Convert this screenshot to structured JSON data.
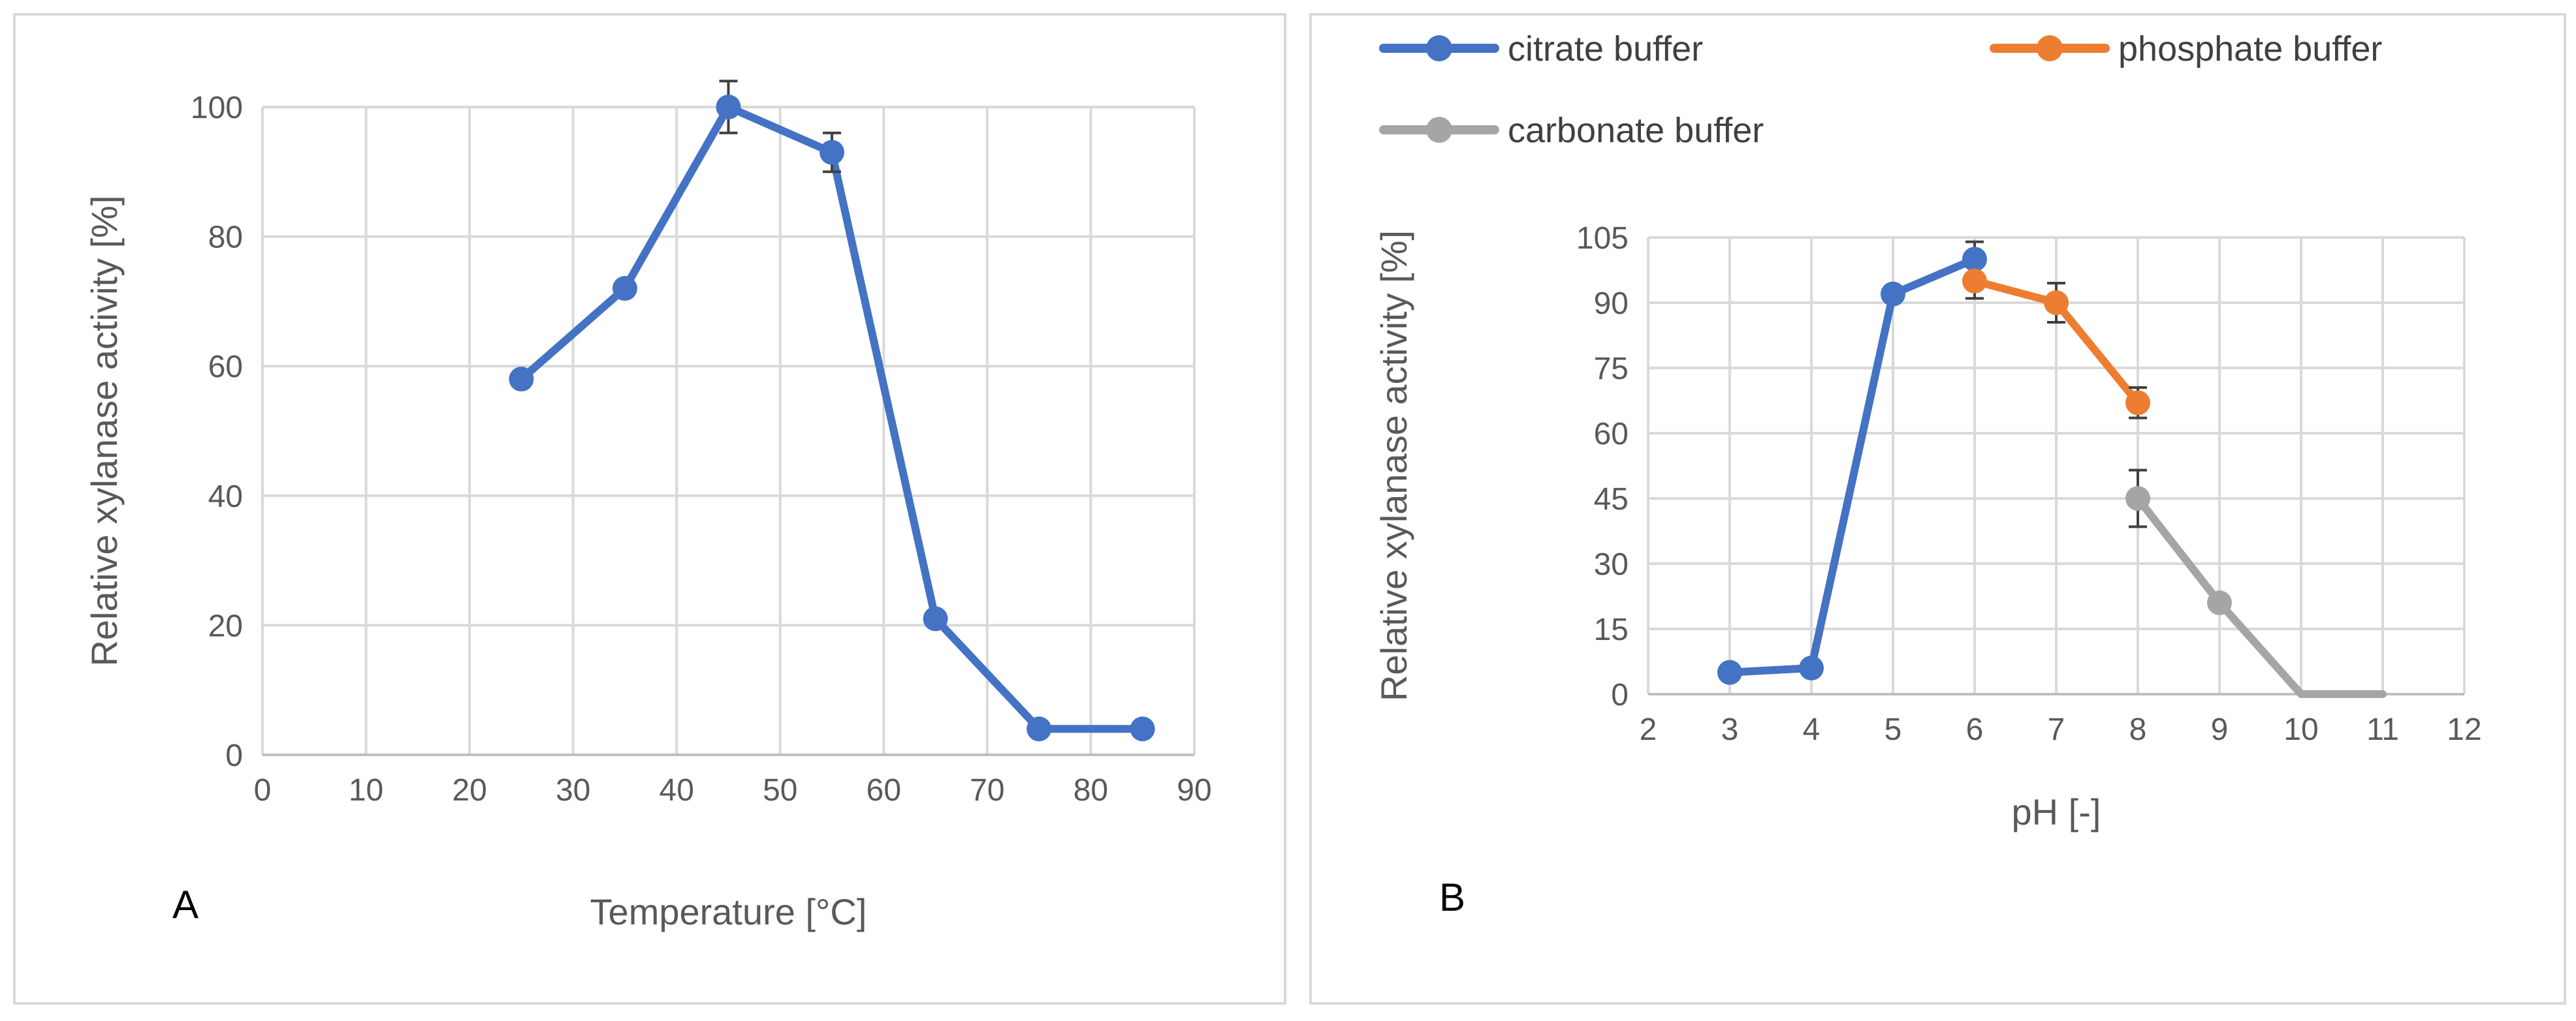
{
  "chart_data": [
    {
      "type": "line",
      "panel_label": "A",
      "title": "",
      "xlabel": "Temperature [°C]",
      "ylabel": "Relative xylanase activity [%]",
      "xlim": [
        0,
        90
      ],
      "ylim": [
        0,
        100
      ],
      "xticks": [
        0,
        10,
        20,
        30,
        40,
        50,
        60,
        70,
        80,
        90
      ],
      "yticks": [
        0,
        20,
        40,
        60,
        80,
        100
      ],
      "grid": true,
      "series": [
        {
          "name": "",
          "color": "#4472c4",
          "x": [
            25,
            35,
            45,
            55,
            65,
            75,
            85
          ],
          "values": [
            58,
            72,
            100,
            93,
            21,
            4,
            4
          ],
          "errors": [
            0,
            0,
            4,
            3,
            0,
            0,
            0
          ]
        }
      ]
    },
    {
      "type": "line",
      "panel_label": "B",
      "title": "",
      "xlabel": "pH [-]",
      "ylabel": "Relative xylanase activity [%]",
      "xlim": [
        2,
        12
      ],
      "ylim": [
        0,
        105
      ],
      "xticks": [
        2,
        3,
        4,
        5,
        6,
        7,
        8,
        9,
        10,
        11,
        12
      ],
      "yticks": [
        0,
        15,
        30,
        45,
        60,
        75,
        90,
        105
      ],
      "grid": true,
      "legend_position": "top",
      "series": [
        {
          "name": "citrate buffer",
          "color": "#4472c4",
          "x": [
            3,
            4,
            5,
            6
          ],
          "values": [
            5,
            6,
            92,
            100
          ],
          "errors": [
            0,
            0,
            0,
            4
          ]
        },
        {
          "name": "phosphate buffer",
          "color": "#ed7d31",
          "x": [
            6,
            7,
            8
          ],
          "values": [
            95,
            90,
            67
          ],
          "errors": [
            4,
            4.5,
            3.5
          ]
        },
        {
          "name": "carbonate buffer",
          "color": "#a5a5a5",
          "x": [
            8,
            9,
            10,
            11
          ],
          "values": [
            45,
            21,
            0,
            0
          ],
          "errors": [
            6.5,
            0,
            0,
            0
          ]
        }
      ]
    }
  ]
}
